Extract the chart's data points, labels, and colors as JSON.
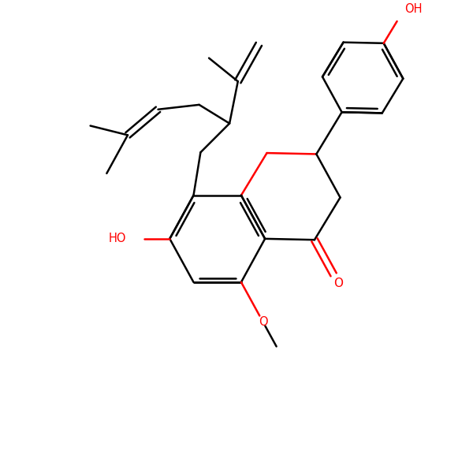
{
  "bg_color": "#ffffff",
  "bond_color": "#000000",
  "heteroatom_color": "#ff0000",
  "line_width": 1.8,
  "font_size": 10.5,
  "figsize": [
    6.0,
    6.0
  ],
  "dpi": 100,
  "xlim": [
    0,
    10
  ],
  "ylim": [
    0,
    10
  ]
}
